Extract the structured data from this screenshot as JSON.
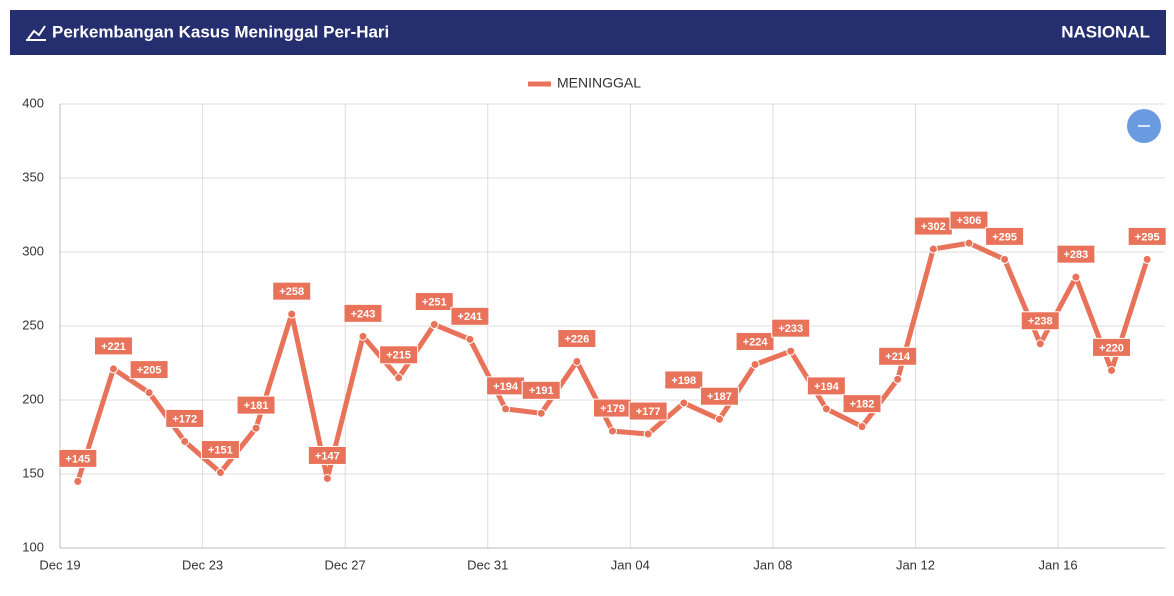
{
  "header": {
    "title": "Perkembangan Kasus Meninggal Per-Hari",
    "region": "NASIONAL"
  },
  "chart_data": {
    "type": "line",
    "categories": [
      "Dec 19",
      "Dec 20",
      "Dec 21",
      "Dec 22",
      "Dec 23",
      "Dec 24",
      "Dec 25",
      "Dec 26",
      "Dec 27",
      "Dec 28",
      "Dec 29",
      "Dec 30",
      "Dec 31",
      "Jan 01",
      "Jan 02",
      "Jan 03",
      "Jan 04",
      "Jan 05",
      "Jan 06",
      "Jan 07",
      "Jan 08",
      "Jan 09",
      "Jan 10",
      "Jan 11",
      "Jan 12",
      "Jan 13",
      "Jan 14",
      "Jan 15",
      "Jan 16",
      "Jan 17",
      "Jan 18"
    ],
    "series": [
      {
        "name": "MENINGGAL",
        "color": "#e8735a",
        "values": [
          145,
          221,
          205,
          172,
          151,
          181,
          258,
          147,
          243,
          215,
          251,
          241,
          194,
          191,
          226,
          179,
          177,
          198,
          187,
          224,
          233,
          194,
          182,
          214,
          302,
          306,
          295,
          238,
          283,
          220,
          295
        ],
        "value_labels": [
          "+145",
          "+221",
          "+205",
          "+172",
          "+151",
          "+181",
          "+258",
          "+147",
          "+243",
          "+215",
          "+251",
          "+241",
          "+194",
          "+191",
          "+226",
          "+179",
          "+177",
          "+198",
          "+187",
          "+224",
          "+233",
          "+194",
          "+182",
          "+214",
          "+302",
          "+306",
          "+295",
          "+238",
          "+283",
          "+220",
          "+295"
        ]
      }
    ],
    "xticks": [
      "Dec 19",
      "Dec 23",
      "Dec 27",
      "Dec 31",
      "Jan 04",
      "Jan 08",
      "Jan 12",
      "Jan 16"
    ],
    "ylim": [
      100,
      400
    ],
    "yticks": [
      100,
      150,
      200,
      250,
      300,
      350,
      400
    ],
    "grid": true,
    "legend": "top"
  }
}
